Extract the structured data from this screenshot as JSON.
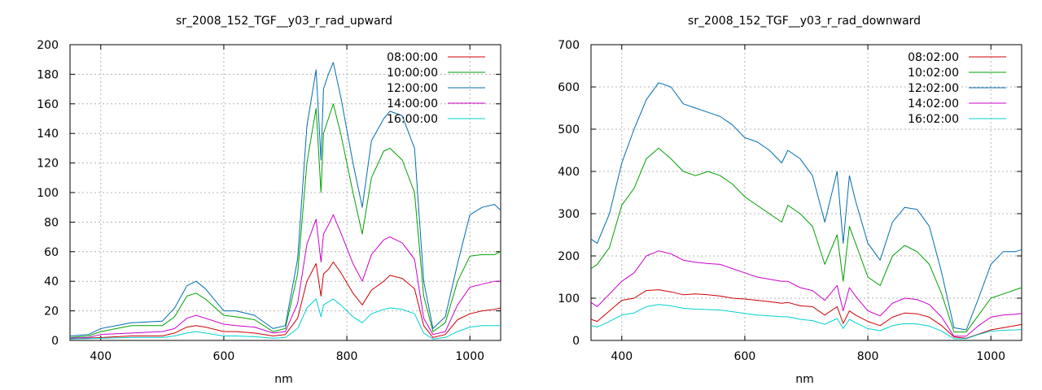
{
  "chart_data": [
    {
      "type": "line",
      "title": "sr_2008_152_TGF__y03_r_rad_upward",
      "xlabel": "nm",
      "ylabel": "",
      "xlim": [
        350,
        1050
      ],
      "ylim": [
        0,
        200
      ],
      "xticks": [
        400,
        600,
        800,
        1000
      ],
      "yticks": [
        0,
        20,
        40,
        60,
        80,
        100,
        120,
        140,
        160,
        180,
        200
      ],
      "grid": true,
      "legend_position": "top-right",
      "x": [
        350,
        380,
        400,
        450,
        500,
        520,
        540,
        555,
        570,
        600,
        620,
        650,
        680,
        700,
        720,
        735,
        750,
        758,
        762,
        770,
        778,
        790,
        810,
        825,
        840,
        860,
        870,
        890,
        910,
        925,
        940,
        960,
        980,
        1000,
        1020,
        1040,
        1050
      ],
      "series": [
        {
          "name": "08:00:00",
          "color": "#cc0000",
          "values": [
            1,
            1.5,
            2,
            3,
            3,
            5,
            9,
            10,
            9,
            6,
            6,
            5,
            3,
            4,
            15,
            40,
            52,
            30,
            45,
            48,
            53,
            46,
            32,
            24,
            34,
            40,
            44,
            42,
            35,
            10,
            2,
            4,
            14,
            18,
            20,
            21,
            22
          ]
        },
        {
          "name": "10:00:00",
          "color": "#00a000",
          "values": [
            2,
            3,
            6,
            10,
            10,
            16,
            30,
            32,
            28,
            17,
            16,
            14,
            6,
            8,
            45,
            120,
            157,
            100,
            140,
            150,
            160,
            140,
            100,
            72,
            110,
            128,
            130,
            122,
            100,
            30,
            6,
            12,
            40,
            57,
            58,
            58,
            60
          ]
        },
        {
          "name": "12:00:00",
          "color": "#006db0",
          "values": [
            3,
            4,
            8,
            12,
            13,
            22,
            37,
            40,
            35,
            20,
            20,
            17,
            8,
            10,
            55,
            145,
            183,
            122,
            170,
            180,
            188,
            165,
            120,
            90,
            135,
            150,
            155,
            152,
            130,
            40,
            8,
            16,
            52,
            85,
            90,
            92,
            88
          ]
        },
        {
          "name": "14:00:00",
          "color": "#cc00cc",
          "values": [
            1.5,
            2,
            4,
            5,
            6,
            8,
            15,
            17,
            15,
            11,
            10,
            9,
            5,
            6,
            25,
            65,
            82,
            53,
            72,
            78,
            85,
            73,
            52,
            40,
            58,
            68,
            70,
            66,
            55,
            15,
            4,
            6,
            24,
            36,
            38,
            40,
            40
          ]
        },
        {
          "name": "16:00:00",
          "color": "#00d0d0",
          "values": [
            1,
            1.2,
            1.5,
            2,
            2,
            3,
            5,
            6,
            5,
            3,
            3,
            2.5,
            1.5,
            2,
            8,
            22,
            28,
            16,
            24,
            26,
            28,
            24,
            16,
            12,
            18,
            21,
            22,
            21,
            18,
            5,
            1,
            2,
            6,
            9,
            10,
            10,
            10
          ]
        }
      ]
    },
    {
      "type": "line",
      "title": "sr_2008_152_TGF__y03_r_rad_downward",
      "xlabel": "nm",
      "ylabel": "",
      "xlim": [
        350,
        1050
      ],
      "ylim": [
        0,
        700
      ],
      "xticks": [
        400,
        600,
        800,
        1000
      ],
      "yticks": [
        0,
        100,
        200,
        300,
        400,
        500,
        600,
        700
      ],
      "grid": true,
      "legend_position": "top-right",
      "x": [
        350,
        360,
        380,
        400,
        420,
        440,
        460,
        480,
        500,
        520,
        540,
        560,
        580,
        600,
        620,
        640,
        660,
        670,
        690,
        710,
        730,
        750,
        760,
        770,
        780,
        800,
        820,
        840,
        860,
        880,
        900,
        920,
        940,
        960,
        980,
        1000,
        1020,
        1040,
        1050
      ],
      "series": [
        {
          "name": "08:02:00",
          "color": "#cc0000",
          "values": [
            50,
            45,
            70,
            95,
            100,
            118,
            120,
            115,
            108,
            110,
            108,
            105,
            100,
            98,
            95,
            92,
            88,
            90,
            82,
            80,
            60,
            80,
            40,
            70,
            60,
            45,
            35,
            55,
            65,
            63,
            55,
            35,
            8,
            5,
            15,
            25,
            30,
            35,
            38
          ]
        },
        {
          "name": "10:02:00",
          "color": "#00a000",
          "values": [
            170,
            180,
            220,
            320,
            360,
            430,
            455,
            430,
            400,
            390,
            400,
            390,
            370,
            340,
            320,
            300,
            280,
            320,
            300,
            270,
            180,
            250,
            140,
            270,
            230,
            150,
            130,
            200,
            225,
            210,
            180,
            110,
            20,
            20,
            60,
            100,
            110,
            120,
            125
          ]
        },
        {
          "name": "12:02:00",
          "color": "#006db0",
          "values": [
            240,
            230,
            300,
            420,
            500,
            570,
            610,
            600,
            560,
            550,
            540,
            530,
            510,
            480,
            470,
            450,
            420,
            450,
            430,
            390,
            280,
            400,
            230,
            390,
            330,
            230,
            190,
            280,
            315,
            310,
            270,
            160,
            30,
            25,
            100,
            180,
            210,
            210,
            215
          ]
        },
        {
          "name": "14:02:00",
          "color": "#cc00cc",
          "values": [
            90,
            80,
            110,
            140,
            160,
            200,
            212,
            205,
            190,
            185,
            182,
            180,
            170,
            160,
            150,
            145,
            140,
            140,
            125,
            118,
            95,
            130,
            70,
            125,
            105,
            70,
            58,
            88,
            100,
            97,
            85,
            55,
            10,
            10,
            35,
            55,
            60,
            62,
            64
          ]
        },
        {
          "name": "16:02:00",
          "color": "#00d0d0",
          "values": [
            35,
            32,
            45,
            60,
            65,
            80,
            85,
            82,
            76,
            74,
            73,
            72,
            68,
            64,
            60,
            58,
            56,
            56,
            50,
            47,
            38,
            52,
            28,
            50,
            42,
            28,
            23,
            35,
            40,
            39,
            34,
            22,
            4,
            4,
            14,
            22,
            24,
            25,
            26
          ]
        }
      ]
    }
  ]
}
